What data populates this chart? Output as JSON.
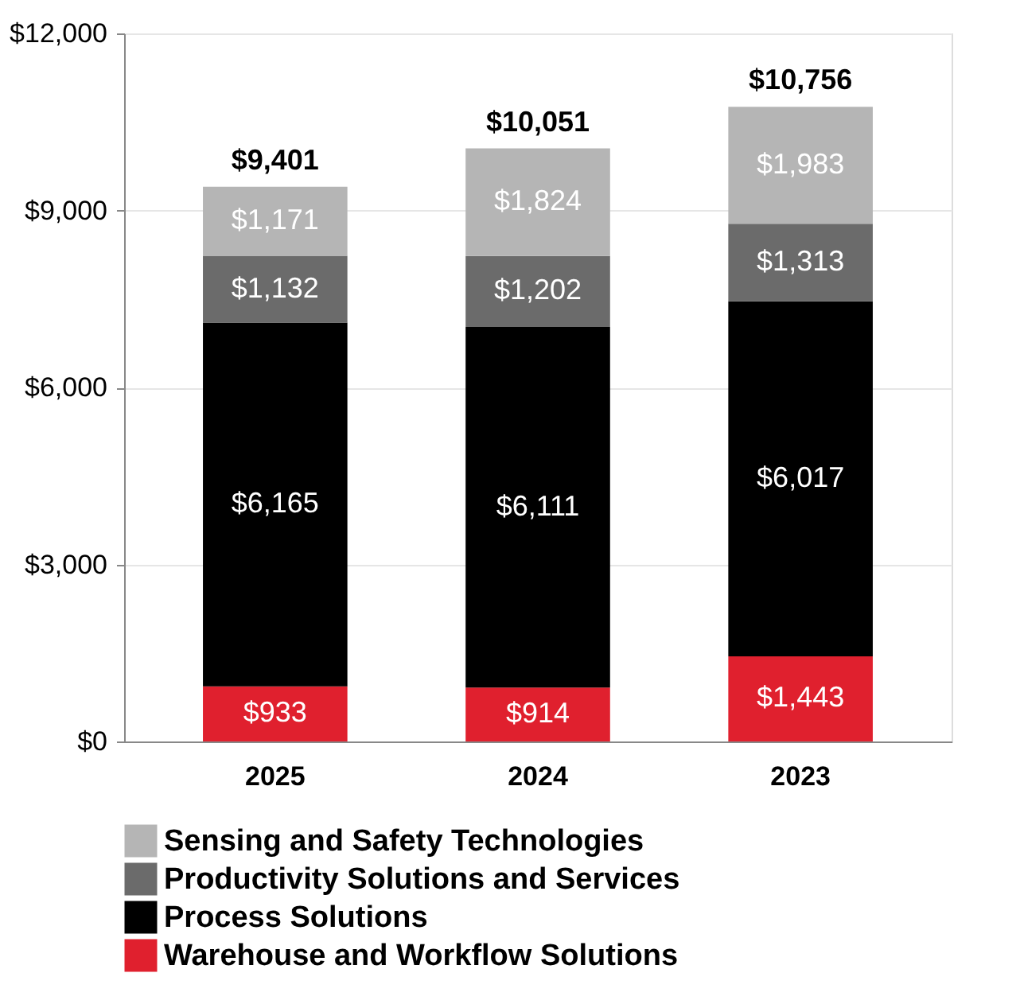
{
  "chart_data": {
    "type": "bar",
    "stacked": true,
    "categories": [
      "2025",
      "2024",
      "2023"
    ],
    "series": [
      {
        "name": "Warehouse and Workflow Solutions",
        "color": "#e0202e",
        "values": [
          933,
          914,
          1443
        ],
        "value_labels": [
          "$933",
          "$914",
          "$1,443"
        ]
      },
      {
        "name": "Process Solutions",
        "color": "#000000",
        "values": [
          6165,
          6111,
          6017
        ],
        "value_labels": [
          "$6,165",
          "$6,111",
          "$6,017"
        ]
      },
      {
        "name": "Productivity Solutions and Services",
        "color": "#6b6b6b",
        "values": [
          1132,
          1202,
          1313
        ],
        "value_labels": [
          "$1,132",
          "$1,202",
          "$1,313"
        ]
      },
      {
        "name": "Sensing and Safety Technologies",
        "color": "#b5b5b5",
        "values": [
          1171,
          1824,
          1983
        ],
        "value_labels": [
          "$1,171",
          "$1,824",
          "$1,983"
        ]
      }
    ],
    "totals": [
      "$9,401",
      "$10,051",
      "$10,756"
    ],
    "ylim": [
      0,
      12000
    ],
    "yticks": [
      {
        "value": 0,
        "label": "$0"
      },
      {
        "value": 3000,
        "label": "$3,000"
      },
      {
        "value": 6000,
        "label": "$6,000"
      },
      {
        "value": 9000,
        "label": "$9,000"
      },
      {
        "value": 12000,
        "label": "$12,000"
      }
    ],
    "grid": "y",
    "legend": "bottom"
  }
}
